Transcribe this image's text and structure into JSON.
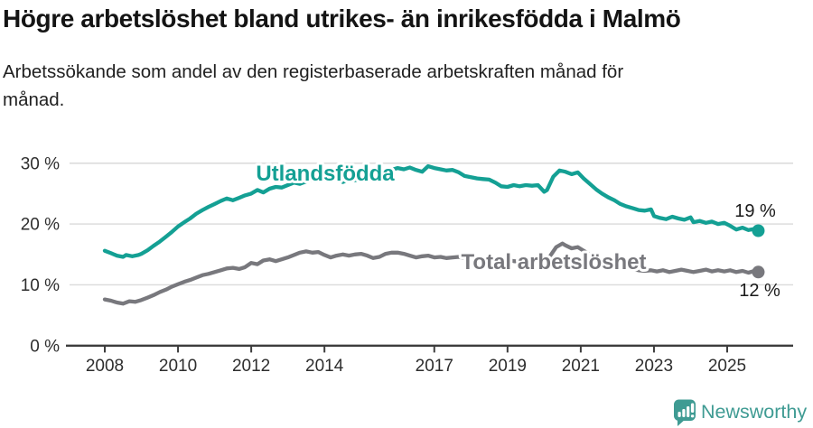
{
  "header": {
    "title": "Högre arbetslöshet bland utrikes- än inrikesfödda i Malmö",
    "subtitle": "Arbetssökande som andel av den registerbaserade arbetskraften månad för\nmånad."
  },
  "chart_data": {
    "type": "line",
    "title": "Högre arbetslöshet bland utrikes- än inrikesfödda i Malmö",
    "subtitle": "Arbetssökande som andel av den registerbaserade arbetskraften månad för månad.",
    "grid": true,
    "x_axis": {
      "ticks": [
        2008,
        2010,
        2012,
        2014,
        2017,
        2019,
        2021,
        2023,
        2025
      ],
      "range": [
        2007.6,
        2026.3
      ],
      "unit": "year"
    },
    "y_axis": {
      "ticks": [
        0,
        10,
        20,
        30
      ],
      "tick_labels": [
        "0 %",
        "10 %",
        "20 %",
        "30 %"
      ],
      "range": [
        0,
        33
      ],
      "unit": "percent"
    },
    "series": [
      {
        "name": "Utlandsfödda",
        "color": "#14A094",
        "end_label": "19 %",
        "end_value": 19,
        "points": [
          [
            2008.0,
            15.6
          ],
          [
            2008.17,
            15.2
          ],
          [
            2008.33,
            14.8
          ],
          [
            2008.5,
            14.6
          ],
          [
            2008.58,
            14.9
          ],
          [
            2008.75,
            14.7
          ],
          [
            2008.92,
            14.9
          ],
          [
            2009.0,
            15.1
          ],
          [
            2009.17,
            15.7
          ],
          [
            2009.33,
            16.4
          ],
          [
            2009.5,
            17.1
          ],
          [
            2009.67,
            17.9
          ],
          [
            2009.83,
            18.7
          ],
          [
            2010.0,
            19.6
          ],
          [
            2010.17,
            20.3
          ],
          [
            2010.33,
            20.9
          ],
          [
            2010.5,
            21.7
          ],
          [
            2010.67,
            22.3
          ],
          [
            2010.83,
            22.8
          ],
          [
            2011.0,
            23.3
          ],
          [
            2011.17,
            23.8
          ],
          [
            2011.33,
            24.2
          ],
          [
            2011.5,
            23.9
          ],
          [
            2011.67,
            24.3
          ],
          [
            2011.83,
            24.7
          ],
          [
            2012.0,
            25.0
          ],
          [
            2012.17,
            25.6
          ],
          [
            2012.33,
            25.2
          ],
          [
            2012.5,
            25.8
          ],
          [
            2012.67,
            26.1
          ],
          [
            2012.83,
            26.0
          ],
          [
            2013.0,
            26.4
          ],
          [
            2013.17,
            26.8
          ],
          [
            2013.33,
            26.6
          ],
          [
            2013.5,
            27.0
          ],
          [
            2013.67,
            27.3
          ],
          [
            2013.83,
            27.2
          ],
          [
            2014.0,
            27.5
          ],
          [
            2014.17,
            27.8
          ],
          [
            2014.33,
            27.6
          ],
          [
            2014.5,
            26.9
          ],
          [
            2014.67,
            27.3
          ],
          [
            2014.83,
            27.2
          ],
          [
            2015.0,
            27.4
          ],
          [
            2015.17,
            28.0
          ],
          [
            2015.33,
            28.4
          ],
          [
            2015.5,
            28.2
          ],
          [
            2015.67,
            28.6
          ],
          [
            2015.83,
            28.9
          ],
          [
            2016.0,
            29.2
          ],
          [
            2016.17,
            29.0
          ],
          [
            2016.33,
            29.3
          ],
          [
            2016.5,
            28.9
          ],
          [
            2016.67,
            28.6
          ],
          [
            2016.83,
            29.5
          ],
          [
            2017.0,
            29.2
          ],
          [
            2017.17,
            29.0
          ],
          [
            2017.33,
            28.8
          ],
          [
            2017.5,
            28.9
          ],
          [
            2017.67,
            28.5
          ],
          [
            2017.83,
            27.9
          ],
          [
            2018.0,
            27.7
          ],
          [
            2018.17,
            27.5
          ],
          [
            2018.33,
            27.4
          ],
          [
            2018.5,
            27.3
          ],
          [
            2018.67,
            26.8
          ],
          [
            2018.83,
            26.2
          ],
          [
            2019.0,
            26.1
          ],
          [
            2019.17,
            26.4
          ],
          [
            2019.33,
            26.2
          ],
          [
            2019.5,
            26.4
          ],
          [
            2019.67,
            26.3
          ],
          [
            2019.83,
            26.4
          ],
          [
            2020.0,
            25.3
          ],
          [
            2020.08,
            25.6
          ],
          [
            2020.25,
            27.8
          ],
          [
            2020.42,
            28.8
          ],
          [
            2020.58,
            28.6
          ],
          [
            2020.75,
            28.2
          ],
          [
            2020.92,
            28.5
          ],
          [
            2021.08,
            27.5
          ],
          [
            2021.25,
            26.6
          ],
          [
            2021.42,
            25.7
          ],
          [
            2021.58,
            25.0
          ],
          [
            2021.75,
            24.4
          ],
          [
            2021.92,
            23.9
          ],
          [
            2022.08,
            23.3
          ],
          [
            2022.25,
            22.9
          ],
          [
            2022.42,
            22.6
          ],
          [
            2022.58,
            22.3
          ],
          [
            2022.75,
            22.2
          ],
          [
            2022.92,
            22.4
          ],
          [
            2023.0,
            21.3
          ],
          [
            2023.17,
            21.0
          ],
          [
            2023.33,
            20.8
          ],
          [
            2023.5,
            21.2
          ],
          [
            2023.67,
            20.9
          ],
          [
            2023.83,
            20.7
          ],
          [
            2024.0,
            21.1
          ],
          [
            2024.08,
            20.3
          ],
          [
            2024.25,
            20.5
          ],
          [
            2024.42,
            20.2
          ],
          [
            2024.58,
            20.4
          ],
          [
            2024.75,
            20.0
          ],
          [
            2024.92,
            20.2
          ],
          [
            2025.08,
            19.7
          ],
          [
            2025.25,
            19.1
          ],
          [
            2025.42,
            19.4
          ],
          [
            2025.58,
            19.0
          ],
          [
            2025.75,
            19.2
          ],
          [
            2025.85,
            18.9
          ]
        ]
      },
      {
        "name": "Total arbetslöshet",
        "color": "#78787D",
        "end_label": "12 %",
        "end_value": 12,
        "points": [
          [
            2008.0,
            7.6
          ],
          [
            2008.17,
            7.4
          ],
          [
            2008.33,
            7.1
          ],
          [
            2008.5,
            6.9
          ],
          [
            2008.67,
            7.3
          ],
          [
            2008.83,
            7.2
          ],
          [
            2009.0,
            7.5
          ],
          [
            2009.17,
            7.9
          ],
          [
            2009.33,
            8.3
          ],
          [
            2009.5,
            8.8
          ],
          [
            2009.67,
            9.2
          ],
          [
            2009.83,
            9.7
          ],
          [
            2010.0,
            10.1
          ],
          [
            2010.17,
            10.5
          ],
          [
            2010.33,
            10.8
          ],
          [
            2010.5,
            11.2
          ],
          [
            2010.67,
            11.6
          ],
          [
            2010.83,
            11.8
          ],
          [
            2011.0,
            12.1
          ],
          [
            2011.17,
            12.4
          ],
          [
            2011.33,
            12.7
          ],
          [
            2011.5,
            12.8
          ],
          [
            2011.67,
            12.6
          ],
          [
            2011.83,
            12.9
          ],
          [
            2012.0,
            13.6
          ],
          [
            2012.17,
            13.4
          ],
          [
            2012.33,
            14.0
          ],
          [
            2012.5,
            14.2
          ],
          [
            2012.67,
            13.9
          ],
          [
            2012.83,
            14.2
          ],
          [
            2013.0,
            14.5
          ],
          [
            2013.17,
            14.9
          ],
          [
            2013.33,
            15.3
          ],
          [
            2013.5,
            15.5
          ],
          [
            2013.67,
            15.3
          ],
          [
            2013.83,
            15.4
          ],
          [
            2014.0,
            14.9
          ],
          [
            2014.17,
            14.5
          ],
          [
            2014.33,
            14.8
          ],
          [
            2014.5,
            15.0
          ],
          [
            2014.67,
            14.8
          ],
          [
            2014.83,
            15.0
          ],
          [
            2015.0,
            15.1
          ],
          [
            2015.17,
            14.8
          ],
          [
            2015.33,
            14.4
          ],
          [
            2015.5,
            14.6
          ],
          [
            2015.67,
            15.1
          ],
          [
            2015.83,
            15.3
          ],
          [
            2016.0,
            15.3
          ],
          [
            2016.17,
            15.1
          ],
          [
            2016.33,
            14.8
          ],
          [
            2016.5,
            14.5
          ],
          [
            2016.67,
            14.7
          ],
          [
            2016.83,
            14.8
          ],
          [
            2017.0,
            14.5
          ],
          [
            2017.17,
            14.6
          ],
          [
            2017.33,
            14.4
          ],
          [
            2017.5,
            14.5
          ],
          [
            2017.67,
            14.6
          ],
          [
            2017.83,
            14.4
          ],
          [
            2018.0,
            14.5
          ],
          [
            2018.17,
            14.3
          ],
          [
            2018.33,
            14.2
          ],
          [
            2018.5,
            14.4
          ],
          [
            2018.67,
            14.2
          ],
          [
            2018.83,
            14.0
          ],
          [
            2019.0,
            14.1
          ],
          [
            2019.17,
            13.9
          ],
          [
            2019.33,
            13.8
          ],
          [
            2019.5,
            13.9
          ],
          [
            2019.67,
            13.8
          ],
          [
            2019.83,
            13.9
          ],
          [
            2020.0,
            13.6
          ],
          [
            2020.17,
            14.8
          ],
          [
            2020.33,
            16.2
          ],
          [
            2020.5,
            16.8
          ],
          [
            2020.58,
            16.5
          ],
          [
            2020.75,
            16.0
          ],
          [
            2020.92,
            16.2
          ],
          [
            2021.08,
            15.6
          ],
          [
            2021.25,
            15.0
          ],
          [
            2021.42,
            14.4
          ],
          [
            2021.58,
            13.9
          ],
          [
            2021.75,
            13.5
          ],
          [
            2021.92,
            13.2
          ],
          [
            2022.08,
            13.0
          ],
          [
            2022.25,
            12.9
          ],
          [
            2022.42,
            12.6
          ],
          [
            2022.58,
            12.4
          ],
          [
            2022.75,
            12.3
          ],
          [
            2022.92,
            12.4
          ],
          [
            2023.08,
            12.2
          ],
          [
            2023.25,
            12.4
          ],
          [
            2023.42,
            12.1
          ],
          [
            2023.58,
            12.3
          ],
          [
            2023.75,
            12.5
          ],
          [
            2023.92,
            12.3
          ],
          [
            2024.08,
            12.1
          ],
          [
            2024.25,
            12.3
          ],
          [
            2024.42,
            12.5
          ],
          [
            2024.58,
            12.2
          ],
          [
            2024.75,
            12.4
          ],
          [
            2024.92,
            12.2
          ],
          [
            2025.08,
            12.4
          ],
          [
            2025.25,
            12.1
          ],
          [
            2025.42,
            12.3
          ],
          [
            2025.58,
            12.0
          ],
          [
            2025.75,
            12.3
          ],
          [
            2025.85,
            12.1
          ]
        ]
      }
    ],
    "annotations": {
      "series_labels": [
        "Utlandsfödda",
        "Total arbetslöshet"
      ],
      "end_labels": [
        "19 %",
        "12 %"
      ]
    },
    "legend_position": "inline-labels"
  },
  "footer": {
    "brand": "Newsworthy",
    "brand_color": "#3F9B93",
    "logo_icon": "bar-chart-speech-bubble-icon"
  },
  "colors": {
    "foreign_born_line": "#14A094",
    "total_line": "#78787D",
    "gridline": "#DADADA",
    "axis": "#3D3D3D",
    "text_dark": "#141414"
  }
}
